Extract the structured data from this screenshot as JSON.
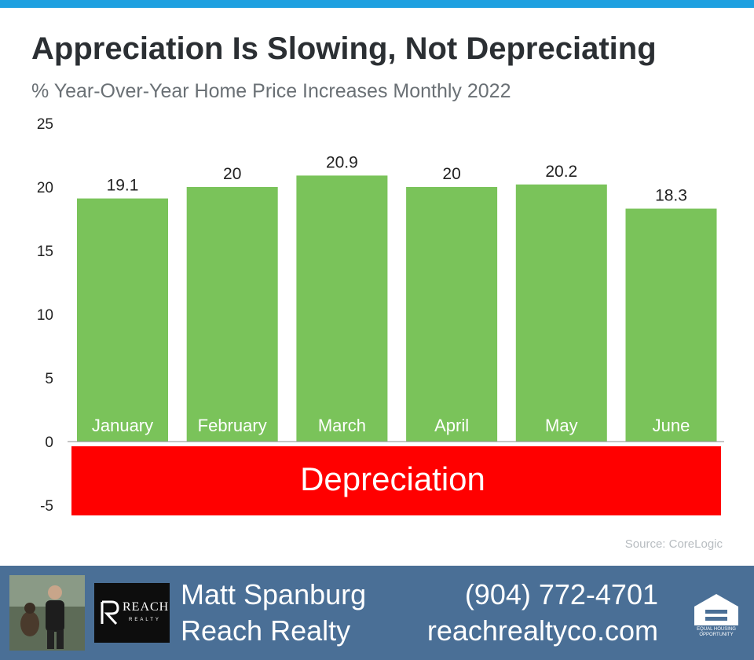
{
  "colors": {
    "accent_bar": "#1ea0e0",
    "bar_fill": "#7ac35a",
    "depreciation_fill": "#ff0000",
    "footer_bg": "#4a6f96"
  },
  "chart_data": {
    "type": "bar",
    "title": "Appreciation Is Slowing, Not Depreciating",
    "subtitle": "% Year-Over-Year Home Price Increases Monthly 2022",
    "categories": [
      "January",
      "February",
      "March",
      "April",
      "May",
      "June"
    ],
    "values": [
      19.1,
      20,
      20.9,
      20,
      20.2,
      18.3
    ],
    "value_labels": [
      "19.1",
      "20",
      "20.9",
      "20",
      "20.2",
      "18.3"
    ],
    "yticks": [
      25,
      20,
      15,
      10,
      5,
      0,
      -5
    ],
    "ylim": [
      -5,
      25
    ],
    "xlabel": "",
    "ylabel": "",
    "grid": false,
    "band": {
      "label": "Depreciation",
      "from": 0,
      "to": -5.8
    },
    "source": "Source: CoreLogic"
  },
  "footer": {
    "agent_name": "Matt Spanburg",
    "company": "Reach Realty",
    "phone": "(904) 772-4701",
    "website": "reachrealtyco.com",
    "logo_word": "REACH",
    "logo_sub": "REALTY",
    "housing_badge": "EQUAL HOUSING OPPORTUNITY"
  },
  "icons": [
    "agent-photo",
    "reach-realty-logo",
    "equal-housing-icon"
  ]
}
